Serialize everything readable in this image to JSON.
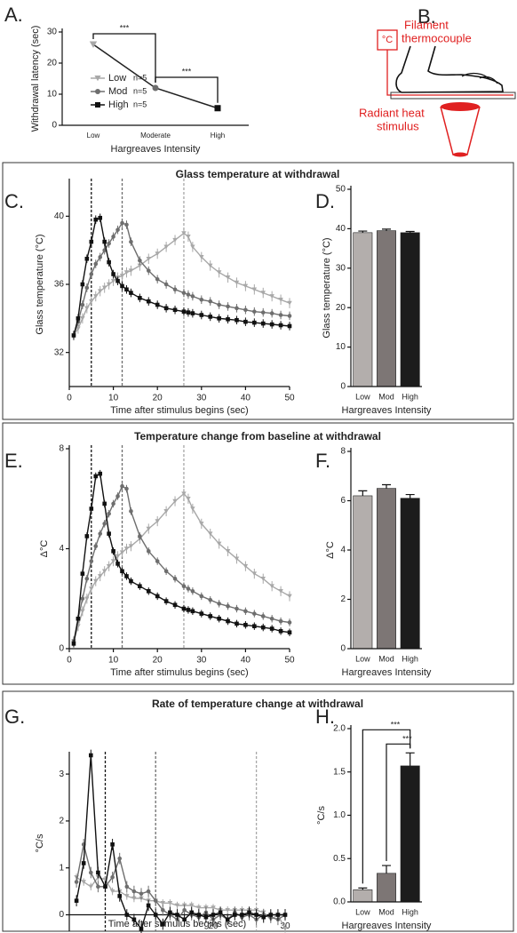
{
  "diagram": {
    "panel": "B.",
    "unit": "°C",
    "filament": [
      "Filament",
      "thermocouple"
    ],
    "stimulus": [
      "Radiant heat",
      "stimulus"
    ]
  },
  "chart_data": [
    {
      "type": "line",
      "panel": "A.",
      "ylabel": "Withdrawal latency (sec)",
      "xlabel": "Hargreaves Intensity",
      "categories": [
        "Low",
        "Moderate",
        "High"
      ],
      "ylim": [
        0,
        30
      ],
      "yticks": [
        0,
        10,
        20,
        30
      ],
      "connector": "#222",
      "series": [
        {
          "name": "Low",
          "note": "n=5",
          "color": "#a8a8a8",
          "marker": "triangle",
          "values": [
            26,
            null,
            null
          ]
        },
        {
          "name": "Mod",
          "note": "n=5",
          "color": "#6e6e6e",
          "marker": "circle",
          "values": [
            null,
            12,
            null
          ]
        },
        {
          "name": "High",
          "note": "n=5",
          "color": "#111111",
          "marker": "square",
          "values": [
            null,
            null,
            5.5
          ]
        }
      ],
      "significance": [
        {
          "from": 0,
          "to": 1,
          "label": "***"
        },
        {
          "from": 1,
          "to": 2,
          "label": "***"
        }
      ]
    },
    {
      "type": "line",
      "panel": "C.",
      "title": "Glass temperature at withdrawal",
      "ylabel": "Glass temperature (°C)",
      "xlabel": "Time after stimulus begins (sec)",
      "xlim": [
        0,
        50
      ],
      "xticks": [
        0,
        10,
        20,
        30,
        40,
        50
      ],
      "ylim": [
        30,
        42
      ],
      "yticks": [
        32,
        36,
        40
      ],
      "x": [
        1,
        2,
        3,
        4,
        5,
        6,
        7,
        8,
        9,
        10,
        11,
        12,
        13,
        14,
        16,
        18,
        20,
        22,
        24,
        26,
        27,
        28,
        30,
        32,
        34,
        36,
        38,
        40,
        42,
        44,
        46,
        48,
        50
      ],
      "vlines": [
        {
          "value": 5,
          "color": "#111111"
        },
        {
          "value": 12,
          "color": "#6e6e6e"
        },
        {
          "value": 26,
          "color": "#a8a8a8"
        }
      ],
      "series": [
        {
          "name": "Low",
          "color": "#a8a8a8",
          "marker": "triangle",
          "error": 0.3,
          "values": [
            33,
            33.4,
            34,
            34.6,
            35,
            35.3,
            35.6,
            35.8,
            36,
            36.2,
            36.4,
            36.5,
            36.7,
            36.8,
            37.1,
            37.5,
            37.8,
            38.2,
            38.6,
            39,
            38.8,
            38.2,
            37.6,
            37.1,
            36.7,
            36.4,
            36.1,
            35.9,
            35.7,
            35.5,
            35.3,
            35.1,
            34.9
          ]
        },
        {
          "name": "Mod",
          "color": "#6e6e6e",
          "marker": "circle",
          "error": 0.25,
          "values": [
            33,
            33.8,
            34.8,
            35.8,
            36.6,
            37.2,
            37.6,
            38,
            38.4,
            38.8,
            39.2,
            39.6,
            39.5,
            38.5,
            37.4,
            36.8,
            36.3,
            36,
            35.7,
            35.5,
            35.4,
            35.3,
            35.1,
            35,
            34.8,
            34.7,
            34.6,
            34.5,
            34.4,
            34.35,
            34.3,
            34.2,
            34.15
          ]
        },
        {
          "name": "High",
          "color": "#111111",
          "marker": "square",
          "error": 0.25,
          "values": [
            33,
            34,
            36,
            37.5,
            38.5,
            39.8,
            39.9,
            38.5,
            37.3,
            36.6,
            36.2,
            35.9,
            35.7,
            35.5,
            35.2,
            35,
            34.8,
            34.6,
            34.5,
            34.4,
            34.35,
            34.3,
            34.2,
            34.1,
            34,
            33.95,
            33.9,
            33.8,
            33.75,
            33.7,
            33.65,
            33.6,
            33.55
          ]
        }
      ]
    },
    {
      "type": "bar",
      "panel": "D.",
      "ylabel": "Glass temperature (°C)",
      "xlabel": "Hargreaves Intensity",
      "categories": [
        "Low",
        "Mod",
        "High"
      ],
      "values": [
        39,
        39.5,
        39
      ],
      "errors": [
        0.4,
        0.4,
        0.3
      ],
      "colors": [
        "#b3aeac",
        "#7d7675",
        "#1c1c1c"
      ],
      "ylim": [
        0,
        50
      ],
      "yticks": [
        0,
        10,
        20,
        30,
        40,
        50
      ]
    },
    {
      "type": "line",
      "panel": "E.",
      "title": "Temperature change from baseline at withdrawal",
      "ylabel": "Δ°C",
      "xlabel": "Time after stimulus begins (sec)",
      "xlim": [
        0,
        50
      ],
      "xticks": [
        0,
        10,
        20,
        30,
        40,
        50
      ],
      "ylim": [
        0,
        8
      ],
      "yticks": [
        0,
        4,
        8
      ],
      "x": [
        1,
        2,
        3,
        4,
        5,
        6,
        7,
        8,
        9,
        10,
        11,
        12,
        13,
        14,
        16,
        18,
        20,
        22,
        24,
        26,
        27,
        28,
        30,
        32,
        34,
        36,
        38,
        40,
        42,
        44,
        46,
        48,
        50
      ],
      "vlines": [
        {
          "value": 5,
          "color": "#111111"
        },
        {
          "value": 12,
          "color": "#6e6e6e"
        },
        {
          "value": 26,
          "color": "#a8a8a8"
        }
      ],
      "series": [
        {
          "name": "Low",
          "color": "#a8a8a8",
          "marker": "triangle",
          "error": 0.2,
          "values": [
            0.3,
            0.9,
            1.5,
            2,
            2.4,
            2.7,
            2.9,
            3.1,
            3.3,
            3.5,
            3.7,
            3.85,
            4,
            4.1,
            4.4,
            4.8,
            5.1,
            5.5,
            5.9,
            6.2,
            6,
            5.6,
            5,
            4.6,
            4.2,
            3.9,
            3.6,
            3.3,
            3,
            2.8,
            2.5,
            2.3,
            2.1
          ]
        },
        {
          "name": "Mod",
          "color": "#6e6e6e",
          "marker": "circle",
          "error": 0.15,
          "values": [
            0.3,
            1.2,
            2,
            2.8,
            3.5,
            4.1,
            4.6,
            5,
            5.4,
            5.8,
            6.1,
            6.5,
            6.4,
            5.5,
            4.5,
            3.9,
            3.5,
            3.1,
            2.8,
            2.5,
            2.4,
            2.3,
            2.1,
            1.95,
            1.8,
            1.7,
            1.6,
            1.5,
            1.4,
            1.3,
            1.2,
            1.1,
            1.05
          ]
        },
        {
          "name": "High",
          "color": "#111111",
          "marker": "square",
          "error": 0.15,
          "values": [
            0.2,
            1.2,
            3,
            4.5,
            5.6,
            6.9,
            7,
            5.8,
            4.6,
            3.9,
            3.4,
            3.1,
            2.9,
            2.7,
            2.5,
            2.3,
            2.1,
            1.9,
            1.75,
            1.6,
            1.55,
            1.5,
            1.4,
            1.3,
            1.2,
            1.1,
            1,
            0.95,
            0.9,
            0.85,
            0.8,
            0.7,
            0.65
          ]
        }
      ]
    },
    {
      "type": "bar",
      "panel": "F.",
      "ylabel": "Δ°C",
      "xlabel": "Hargreaves Intensity",
      "categories": [
        "Low",
        "Mod",
        "High"
      ],
      "values": [
        6.2,
        6.5,
        6.1
      ],
      "errors": [
        0.2,
        0.15,
        0.15
      ],
      "colors": [
        "#b3aeac",
        "#7d7675",
        "#1c1c1c"
      ],
      "ylim": [
        0,
        8
      ],
      "yticks": [
        0,
        2,
        4,
        6,
        8
      ]
    },
    {
      "type": "line",
      "panel": "G.",
      "title": "Rate of temperature change at withdrawal",
      "ylabel": "°C/s",
      "xlabel": "Time after stimulus begins (sec)",
      "xlim": [
        0,
        30
      ],
      "xticks": [
        20,
        30
      ],
      "ylim": [
        -0.35,
        3.4
      ],
      "yticks": [
        0,
        1,
        2,
        3
      ],
      "x": [
        1,
        2,
        3,
        4,
        5,
        6,
        7,
        8,
        9,
        10,
        11,
        12,
        13,
        14,
        15,
        16,
        17,
        18,
        19,
        20,
        21,
        22,
        23,
        24,
        25,
        26,
        27,
        28,
        29,
        30
      ],
      "vlines": [
        {
          "value": 5,
          "color": "#111111"
        },
        {
          "value": 12,
          "color": "#6e6e6e"
        },
        {
          "value": 26,
          "color": "#a8a8a8"
        }
      ],
      "series": [
        {
          "name": "Low",
          "color": "#a8a8a8",
          "marker": "triangle",
          "error": 0.08,
          "values": [
            0.8,
            0.7,
            0.6,
            0.8,
            0.75,
            0.5,
            0.5,
            0.4,
            0.35,
            0.35,
            0.3,
            0.3,
            0.25,
            0.25,
            0.2,
            0.2,
            0.2,
            0.15,
            0.15,
            0.15,
            0.1,
            0.1,
            0.1,
            0.1,
            0.1,
            0.1,
            0.05,
            -0.1,
            0,
            -0.3
          ]
        },
        {
          "name": "Mod",
          "color": "#6e6e6e",
          "marker": "circle",
          "error": 0.12,
          "values": [
            0.7,
            1.5,
            0.9,
            0.6,
            0.6,
            0.8,
            1.2,
            0.6,
            0.5,
            0.45,
            0.5,
            0.3,
            0.1,
            0,
            -0.1,
            0.1,
            0,
            -0.05,
            0.05,
            -0.1,
            0,
            -0.1,
            0.05,
            -0.05,
            0,
            -0.1,
            0,
            -0.05,
            -0.1,
            0
          ]
        },
        {
          "name": "High",
          "color": "#111111",
          "marker": "square",
          "error": 0.12,
          "values": [
            0.3,
            1.1,
            3.4,
            0.9,
            0.6,
            1.5,
            0.4,
            0,
            -0.1,
            -0.3,
            0.2,
            0,
            -0.2,
            0.05,
            0,
            -0.1,
            0.05,
            0,
            -0.05,
            0,
            0.05,
            -0.1,
            0,
            0,
            0.05,
            0,
            -0.05,
            0,
            0,
            0
          ]
        }
      ]
    },
    {
      "type": "bar",
      "panel": "H.",
      "ylabel": "°C/s",
      "xlabel": "Hargreaves Intensity",
      "categories": [
        "Low",
        "Mod",
        "High"
      ],
      "values": [
        0.14,
        0.33,
        1.57
      ],
      "errors": [
        0.02,
        0.09,
        0.15
      ],
      "colors": [
        "#b3aeac",
        "#7d7675",
        "#1c1c1c"
      ],
      "ylim": [
        0,
        2
      ],
      "yticks": [
        {
          "value": 0,
          "label": "0.0"
        },
        {
          "value": 0.5,
          "label": "0.5"
        },
        {
          "value": 1,
          "label": "1.0"
        },
        {
          "value": 1.5,
          "label": "1.5"
        },
        {
          "value": 2,
          "label": "2.0"
        }
      ],
      "significance": [
        {
          "from": 0,
          "to": 2,
          "label": "***"
        },
        {
          "from": 1,
          "to": 2,
          "label": "***"
        }
      ]
    }
  ]
}
